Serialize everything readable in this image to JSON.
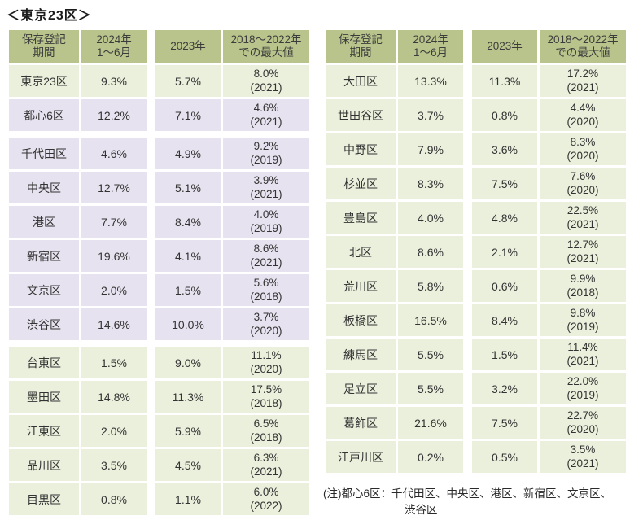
{
  "title": "＜東京23区＞",
  "note": [
    "(注)都心6区：千代田区、中央区、港区、新宿区、文京区、",
    "渋谷区"
  ],
  "colors": {
    "header_bg": "#b9c48c",
    "row_green": "#eaf0dc",
    "row_purple": "#e7e2ef",
    "text": "#333333"
  },
  "chart_data": {
    "type": "table",
    "title": "東京23区",
    "columns": [
      "保存登記期間",
      "2024年1～6月",
      "2023年",
      "2018～2022年での最大値"
    ],
    "column_headers_display": [
      "保存登記\n期間",
      "2024年\n1～6月",
      "2023年",
      "2018～2022年\nでの最大値"
    ],
    "highlight_meaning": "都心6区（千代田区・中央区・港区・新宿区・文京区・渋谷区）は薄紫色",
    "tables": [
      {
        "name": "left",
        "groups": [
          {
            "rows": [
              {
                "ward": "東京23区",
                "v2024h1": "9.3%",
                "v2023": "5.7%",
                "max": "8.0%",
                "max_year": "(2021)",
                "highlight": false
              },
              {
                "ward": "都心6区",
                "v2024h1": "12.2%",
                "v2023": "7.1%",
                "max": "4.6%",
                "max_year": "(2021)",
                "highlight": true
              }
            ]
          },
          {
            "rows": [
              {
                "ward": "千代田区",
                "v2024h1": "4.6%",
                "v2023": "4.9%",
                "max": "9.2%",
                "max_year": "(2019)",
                "highlight": true
              },
              {
                "ward": "中央区",
                "v2024h1": "12.7%",
                "v2023": "5.1%",
                "max": "3.9%",
                "max_year": "(2021)",
                "highlight": true
              },
              {
                "ward": "港区",
                "v2024h1": "7.7%",
                "v2023": "8.4%",
                "max": "4.0%",
                "max_year": "(2019)",
                "highlight": true
              },
              {
                "ward": "新宿区",
                "v2024h1": "19.6%",
                "v2023": "4.1%",
                "max": "8.6%",
                "max_year": "(2021)",
                "highlight": true
              },
              {
                "ward": "文京区",
                "v2024h1": "2.0%",
                "v2023": "1.5%",
                "max": "5.6%",
                "max_year": "(2018)",
                "highlight": true
              },
              {
                "ward": "渋谷区",
                "v2024h1": "14.6%",
                "v2023": "10.0%",
                "max": "3.7%",
                "max_year": "(2020)",
                "highlight": true
              }
            ]
          },
          {
            "rows": [
              {
                "ward": "台東区",
                "v2024h1": "1.5%",
                "v2023": "9.0%",
                "max": "11.1%",
                "max_year": "(2020)",
                "highlight": false
              },
              {
                "ward": "墨田区",
                "v2024h1": "14.8%",
                "v2023": "11.3%",
                "max": "17.5%",
                "max_year": "(2018)",
                "highlight": false
              },
              {
                "ward": "江東区",
                "v2024h1": "2.0%",
                "v2023": "5.9%",
                "max": "6.5%",
                "max_year": "(2018)",
                "highlight": false
              },
              {
                "ward": "品川区",
                "v2024h1": "3.5%",
                "v2023": "4.5%",
                "max": "6.3%",
                "max_year": "(2021)",
                "highlight": false
              },
              {
                "ward": "目黒区",
                "v2024h1": "0.8%",
                "v2023": "1.1%",
                "max": "6.0%",
                "max_year": "(2022)",
                "highlight": false
              }
            ]
          }
        ]
      },
      {
        "name": "right",
        "groups": [
          {
            "rows": [
              {
                "ward": "大田区",
                "v2024h1": "13.3%",
                "v2023": "11.3%",
                "max": "17.2%",
                "max_year": "(2021)",
                "highlight": false
              },
              {
                "ward": "世田谷区",
                "v2024h1": "3.7%",
                "v2023": "0.8%",
                "max": "4.4%",
                "max_year": "(2020)",
                "highlight": false
              },
              {
                "ward": "中野区",
                "v2024h1": "7.9%",
                "v2023": "3.6%",
                "max": "8.3%",
                "max_year": "(2020)",
                "highlight": false
              },
              {
                "ward": "杉並区",
                "v2024h1": "8.3%",
                "v2023": "7.5%",
                "max": "7.6%",
                "max_year": "(2020)",
                "highlight": false
              },
              {
                "ward": "豊島区",
                "v2024h1": "4.0%",
                "v2023": "4.8%",
                "max": "22.5%",
                "max_year": "(2021)",
                "highlight": false
              },
              {
                "ward": "北区",
                "v2024h1": "8.6%",
                "v2023": "2.1%",
                "max": "12.7%",
                "max_year": "(2021)",
                "highlight": false
              },
              {
                "ward": "荒川区",
                "v2024h1": "5.8%",
                "v2023": "0.6%",
                "max": "9.9%",
                "max_year": "(2018)",
                "highlight": false
              },
              {
                "ward": "板橋区",
                "v2024h1": "16.5%",
                "v2023": "8.4%",
                "max": "9.8%",
                "max_year": "(2019)",
                "highlight": false
              },
              {
                "ward": "練馬区",
                "v2024h1": "5.5%",
                "v2023": "1.5%",
                "max": "11.4%",
                "max_year": "(2021)",
                "highlight": false
              },
              {
                "ward": "足立区",
                "v2024h1": "5.5%",
                "v2023": "3.2%",
                "max": "22.0%",
                "max_year": "(2019)",
                "highlight": false
              },
              {
                "ward": "葛飾区",
                "v2024h1": "21.6%",
                "v2023": "7.5%",
                "max": "22.7%",
                "max_year": "(2020)",
                "highlight": false
              },
              {
                "ward": "江戸川区",
                "v2024h1": "0.2%",
                "v2023": "0.5%",
                "max": "3.5%",
                "max_year": "(2021)",
                "highlight": false
              }
            ]
          }
        ]
      }
    ]
  }
}
